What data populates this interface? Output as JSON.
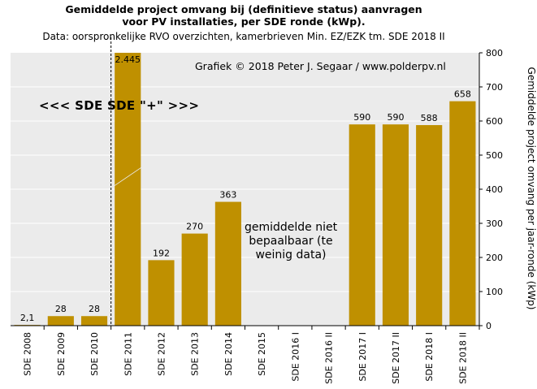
{
  "title_line1": "Gemiddelde project omvang bij (definitieve status) aanvragen",
  "title_line2": "voor PV installaties, per SDE ronde (kWp).",
  "title_line3": "Data: oorspronkelijke  RVO overzichten, kamerbrieven  Min. EZ/EZK tm. SDE 2018 II",
  "credit": "Grafiek  © 2018  Peter J. Segaar / www.polderpv.nl",
  "sde_annotation": "<<< SDE   SDE \"+\" >>>",
  "note_lines": [
    "gemiddelde niet",
    "bepaalbaar (te",
    "weinig data)"
  ],
  "colors": {
    "bar": "#bf9000",
    "plot_bg": "#ebebeb",
    "grid": "#ffffff"
  },
  "chart_data": {
    "type": "bar",
    "categories": [
      "SDE 2008",
      "SDE 2009",
      "SDE 2010",
      "SDE 2011",
      "SDE 2012",
      "SDE 2013",
      "SDE 2014",
      "SDE 2015",
      "SDE 2016 I",
      "SDE 2016 II",
      "SDE 2017 I",
      "SDE 2017 II",
      "SDE 2018 I",
      "SDE 2018 II"
    ],
    "values": [
      2.1,
      28,
      28,
      2445,
      192,
      270,
      363,
      null,
      null,
      null,
      590,
      590,
      588,
      658
    ],
    "data_labels": [
      "2,1",
      "28",
      "28",
      "2.445",
      "192",
      "270",
      "363",
      "",
      "",
      "",
      "590",
      "590",
      "588",
      "658"
    ],
    "ylabel": "Gemiddelde project omvang per jaar-ronde (kWp)",
    "ylim": [
      0,
      800
    ],
    "yticks": [
      0,
      100,
      200,
      300,
      400,
      500,
      600,
      700,
      800
    ],
    "grid": true,
    "broken_bar_index": 3,
    "divider_after_index": 2
  }
}
